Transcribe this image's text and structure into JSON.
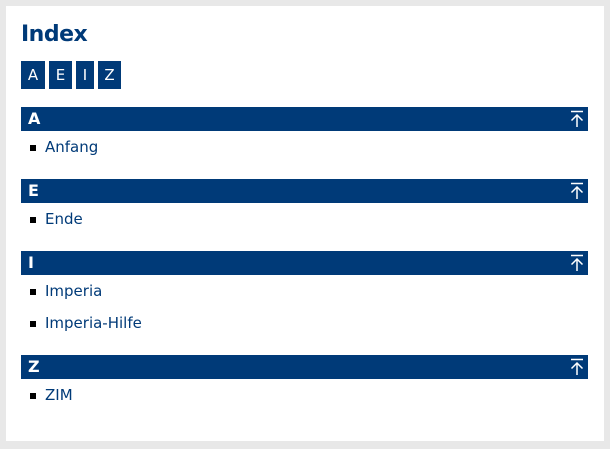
{
  "title": "Index",
  "letters": [
    "A",
    "E",
    "I",
    "Z"
  ],
  "sections": [
    {
      "letter": "A",
      "items": [
        "Anfang"
      ]
    },
    {
      "letter": "E",
      "items": [
        "Ende"
      ]
    },
    {
      "letter": "I",
      "items": [
        "Imperia",
        "Imperia-Hilfe"
      ]
    },
    {
      "letter": "Z",
      "items": [
        "ZIM"
      ]
    }
  ],
  "icons": {
    "back_to_top": "arrow-up-to-line-icon"
  },
  "colors": {
    "accent": "#003a78",
    "background": "#e8e8e8"
  }
}
